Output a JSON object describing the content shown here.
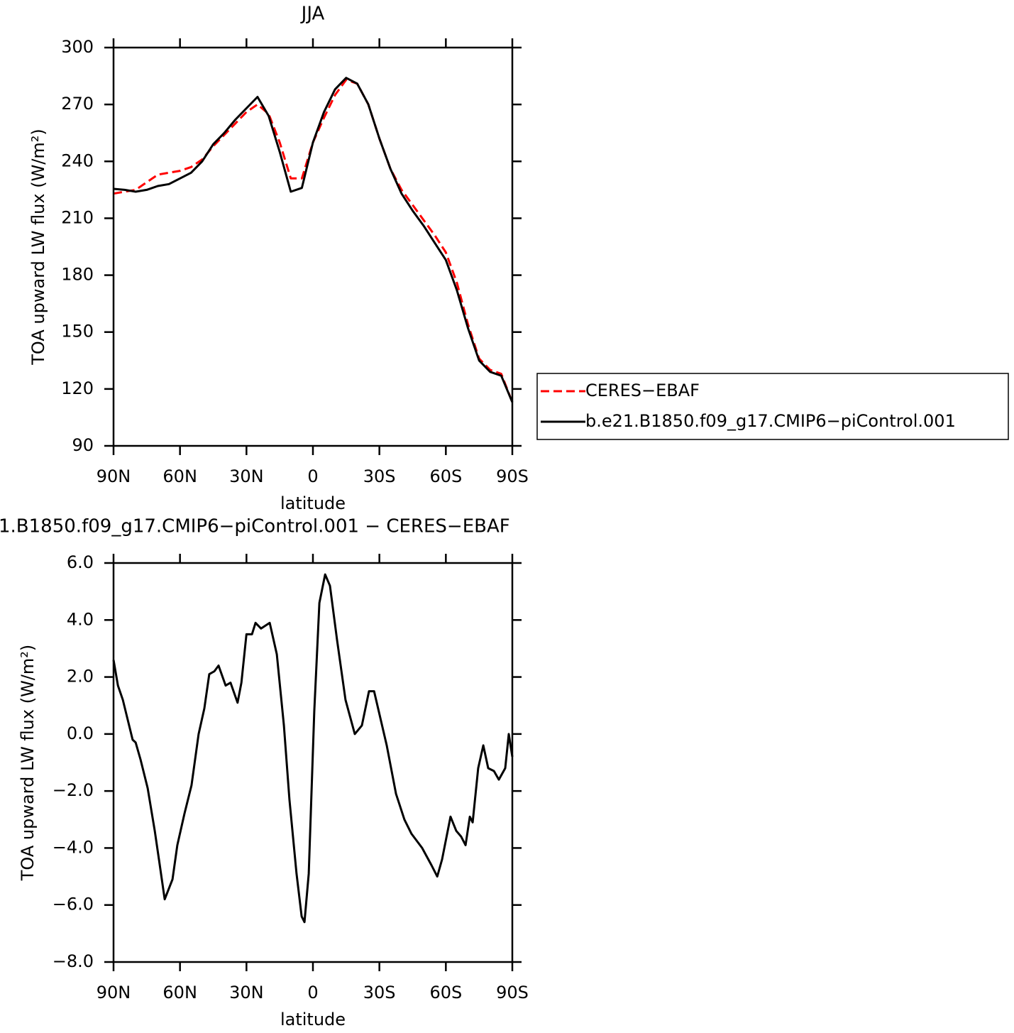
{
  "chart_data": [
    {
      "type": "line",
      "title": "JJA",
      "x_label": "latitude",
      "y_label": "TOA upward LW flux (W/m²)",
      "x": [
        90,
        85,
        80,
        75,
        70,
        65,
        60,
        55,
        50,
        45,
        40,
        35,
        30,
        25,
        20,
        15,
        10,
        5,
        0,
        -5,
        -10,
        -15,
        -20,
        -25,
        -30,
        -35,
        -40,
        -45,
        -50,
        -55,
        -60,
        -65,
        -70,
        -75,
        -80,
        -85,
        -90
      ],
      "xlim": [
        90,
        -90
      ],
      "xticks": [
        {
          "value": 90,
          "label": "90N"
        },
        {
          "value": 60,
          "label": "60N"
        },
        {
          "value": 30,
          "label": "30N"
        },
        0,
        {
          "value": -30,
          "label": "30S"
        },
        {
          "value": -60,
          "label": "60S"
        },
        {
          "value": -90,
          "label": "90S"
        }
      ],
      "ylim": [
        90,
        300
      ],
      "yticks": [
        90,
        120,
        150,
        180,
        210,
        240,
        270,
        300
      ],
      "legend": "right",
      "series": [
        {
          "name": "CERES−EBAF",
          "color": "#ff0000",
          "line_style": "dashed",
          "values": [
            223,
            224,
            225,
            229,
            233,
            234,
            235,
            237,
            241,
            248,
            254,
            260,
            266,
            270,
            265,
            250,
            231,
            231,
            250,
            263,
            275,
            283,
            281,
            270,
            252,
            236,
            225,
            217,
            209,
            201,
            192,
            176,
            154,
            136,
            130,
            128,
            113
          ]
        },
        {
          "name": "b.e21.B1850.f09_g17.CMIP6−piControl.001",
          "color": "#000000",
          "line_style": "solid",
          "values": [
            225.5,
            225,
            224,
            225,
            227,
            228,
            231,
            234,
            240,
            249,
            255,
            262,
            268,
            274,
            264,
            245,
            224,
            226,
            250,
            266,
            278,
            284,
            281,
            270,
            252,
            236,
            223,
            214,
            206,
            197,
            188,
            172,
            152,
            135,
            129,
            127,
            113
          ]
        }
      ]
    },
    {
      "type": "line",
      "title": "1.B1850.f09_g17.CMIP6−piControl.001 − CERES−EBAF",
      "x_label": "latitude",
      "y_label": "TOA upward LW flux (W/m²)",
      "x": [
        90,
        88,
        85.8,
        83.6,
        81.4,
        80,
        77.8,
        74.6,
        71.4,
        69.5,
        66.9,
        63.4,
        61.2,
        58,
        54.8,
        51.6,
        49,
        46.8,
        44.5,
        42.6,
        39.4,
        37.2,
        34,
        32.3,
        30,
        27.5,
        25.9,
        23.4,
        19.5,
        16.3,
        13.1,
        10.6,
        7.4,
        5.1,
        3.8,
        1.9,
        -0.6,
        -2.9,
        -5.5,
        -7.7,
        -10.9,
        -14.7,
        -18.9,
        -22.1,
        -25.3,
        -27.6,
        -33.3,
        -37.5,
        -41.3,
        -44.5,
        -49.3,
        -53.5,
        -56.1,
        -58.3,
        -62.1,
        -64.7,
        -66.9,
        -68.9,
        -70.8,
        -72.1,
        -74.6,
        -76.9,
        -79.1,
        -81.7,
        -83.9,
        -86.8,
        -88.4,
        -90
      ],
      "xlim": [
        90,
        -90
      ],
      "xticks": [
        {
          "value": 90,
          "label": "90N"
        },
        {
          "value": 60,
          "label": "60N"
        },
        {
          "value": 30,
          "label": "30N"
        },
        0,
        {
          "value": -30,
          "label": "30S"
        },
        {
          "value": -60,
          "label": "60S"
        },
        {
          "value": -90,
          "label": "90S"
        }
      ],
      "ylim": [
        -8,
        6
      ],
      "yticks": [
        {
          "value": -8,
          "label": "−8.0"
        },
        {
          "value": -6,
          "label": "−6.0"
        },
        {
          "value": -4,
          "label": "−4.0"
        },
        {
          "value": -2,
          "label": "−2.0"
        },
        {
          "value": 0,
          "label": "0.0"
        },
        {
          "value": 2,
          "label": "2.0"
        },
        {
          "value": 4,
          "label": "4.0"
        },
        {
          "value": 6,
          "label": "6.0"
        }
      ],
      "series": [
        {
          "color": "#000000",
          "line_style": "solid",
          "values": [
            2.6,
            1.7,
            1.2,
            0.5,
            -0.2,
            -0.3,
            -0.9,
            -1.9,
            -3.4,
            -4.4,
            -5.8,
            -5.1,
            -3.9,
            -2.8,
            -1.8,
            0,
            0.9,
            2.1,
            2.2,
            2.4,
            1.7,
            1.8,
            1.1,
            1.8,
            3.5,
            3.5,
            3.9,
            3.7,
            3.9,
            2.8,
            0.3,
            -2.3,
            -4.9,
            -6.4,
            -6.6,
            -4.9,
            0.8,
            4.6,
            5.6,
            5.2,
            3.3,
            1.2,
            0,
            0.3,
            1.5,
            1.5,
            -0.4,
            -2.1,
            -3,
            -3.5,
            -4,
            -4.6,
            -5,
            -4.4,
            -2.9,
            -3.4,
            -3.6,
            -3.9,
            -2.9,
            -3.1,
            -1.2,
            -0.4,
            -1.2,
            -1.3,
            -1.6,
            -1.2,
            0,
            -0.8
          ]
        }
      ]
    }
  ]
}
